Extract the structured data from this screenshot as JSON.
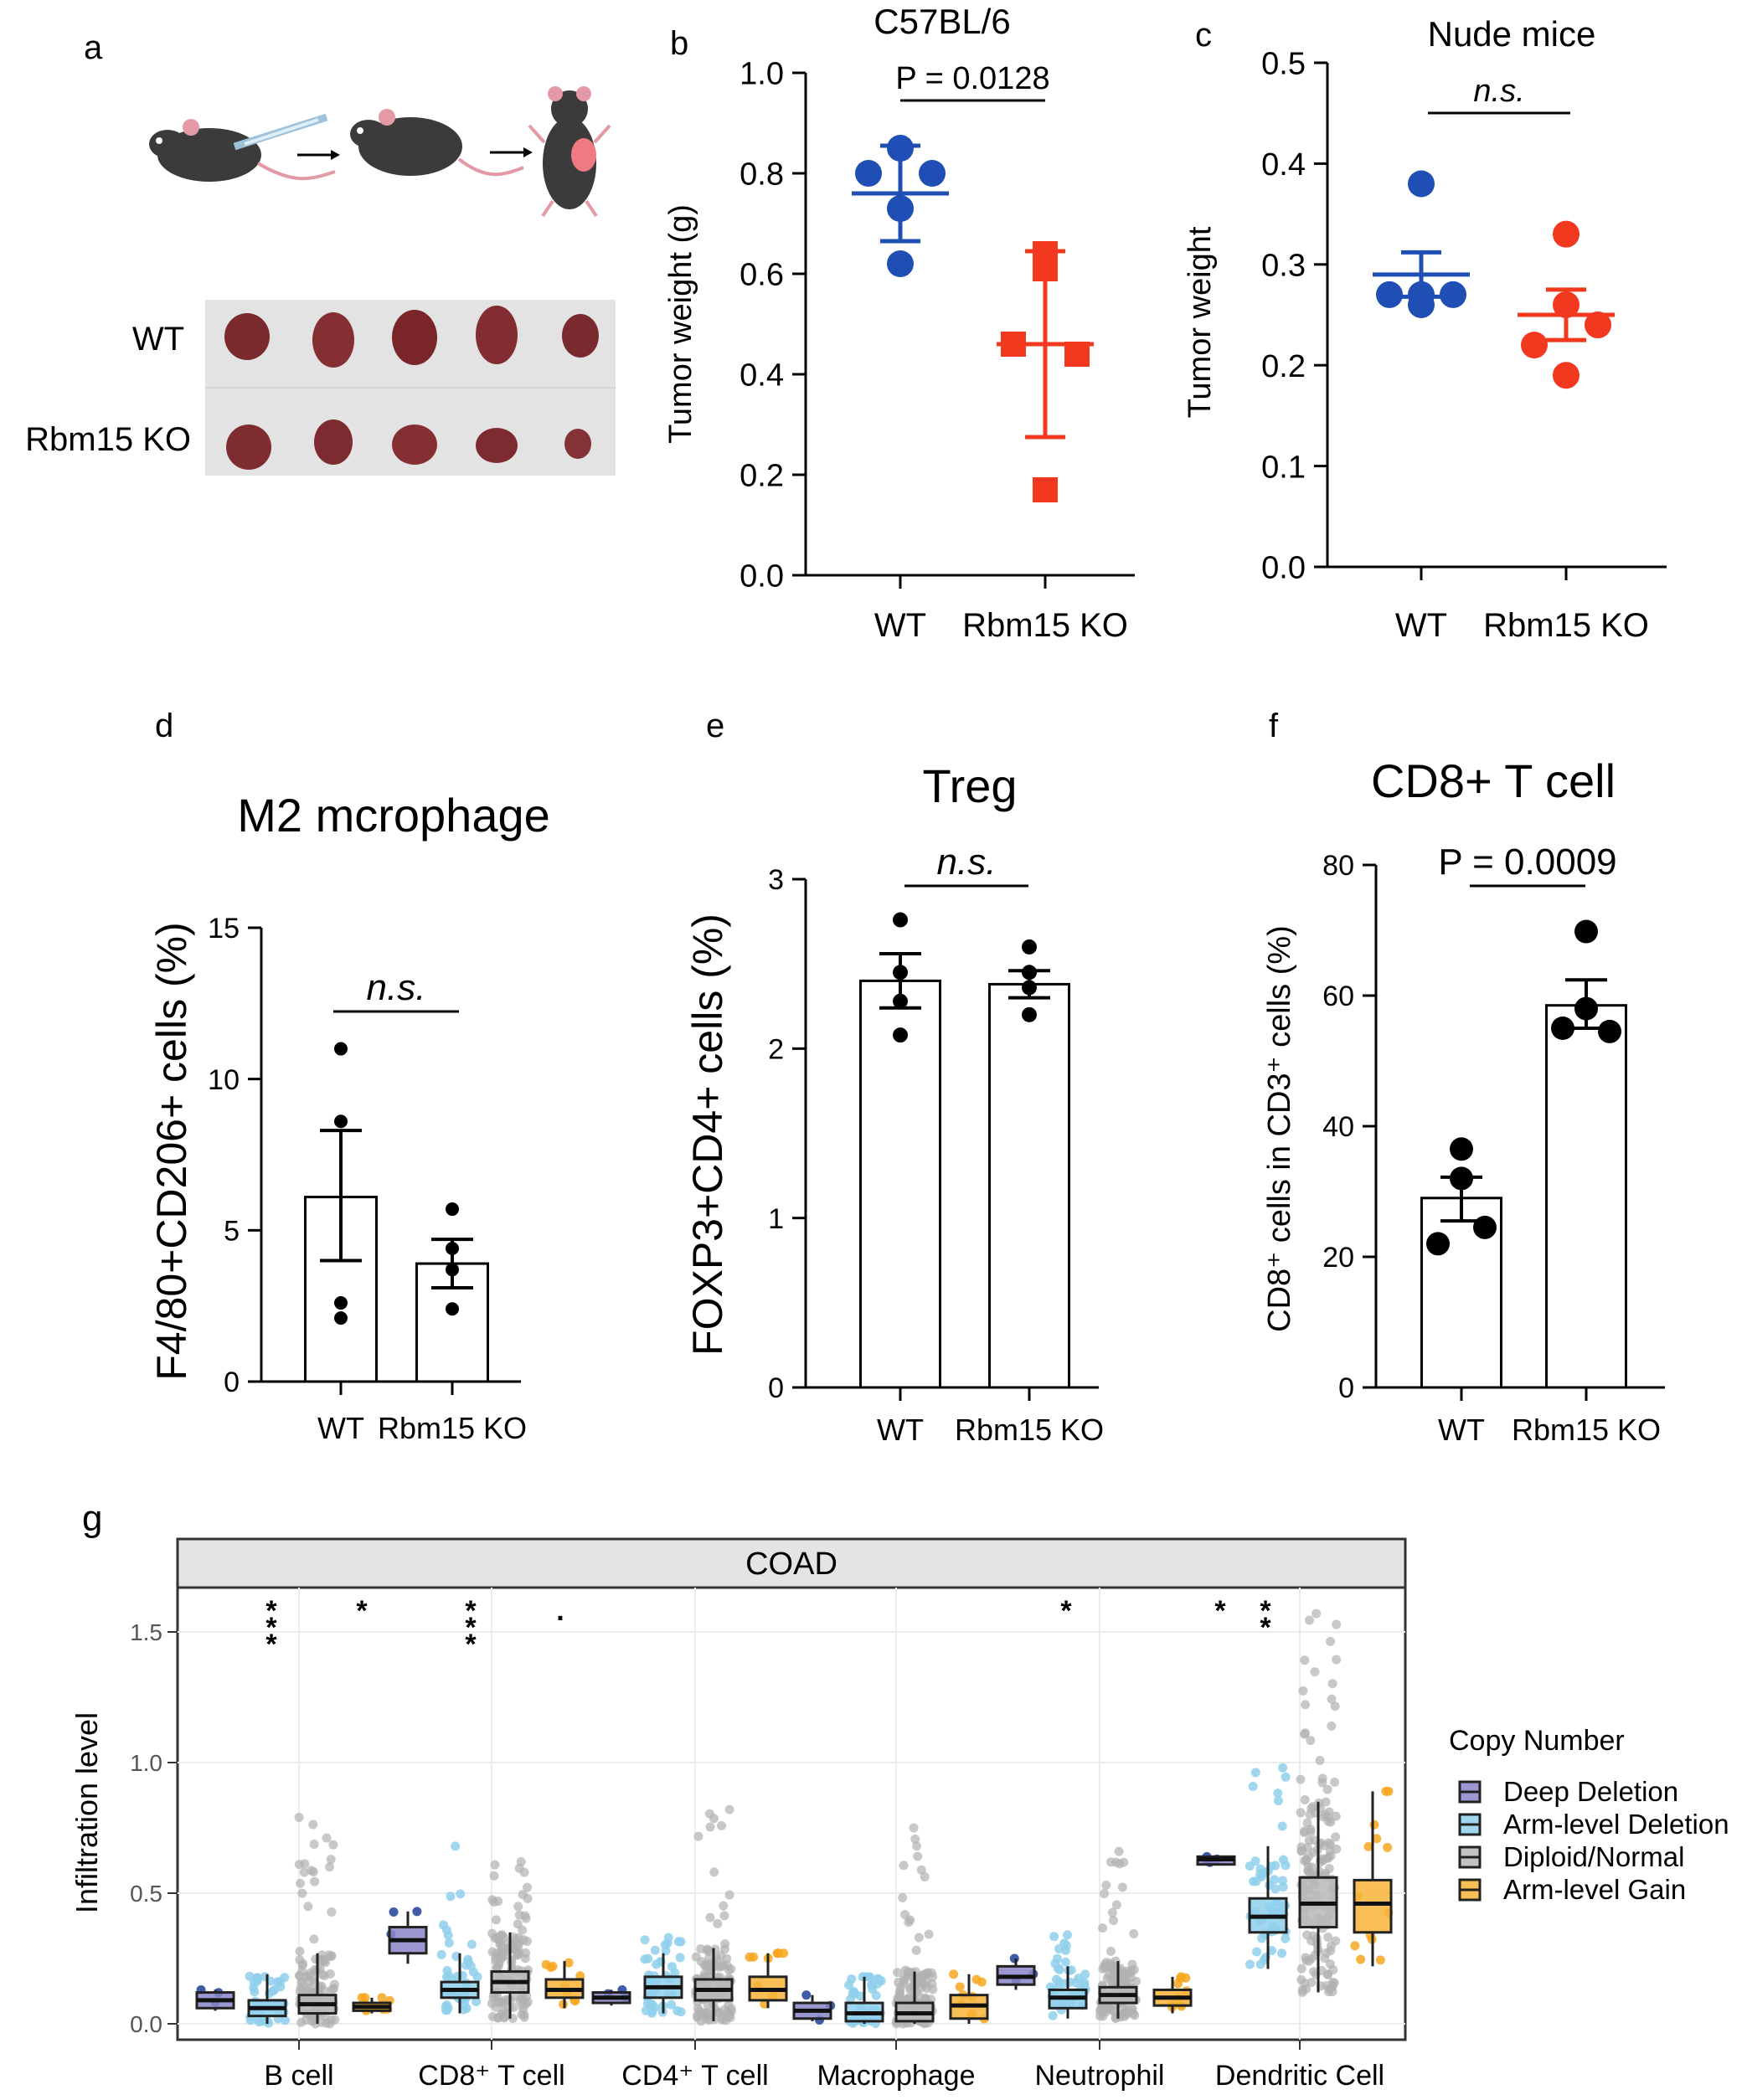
{
  "panel_letters": [
    "a",
    "b",
    "c",
    "d",
    "e",
    "f",
    "g"
  ],
  "panel_a": {
    "row_labels": [
      "WT",
      "Rbm15 KO"
    ]
  },
  "colors": {
    "wt_blue": "#1f4fb4",
    "ko_red": "#f2381e",
    "axis": "#000000",
    "deep_deletion": "#8a86c9",
    "arm_deletion": "#8fd0ec",
    "diploid": "#b8b8b8",
    "arm_gain": "#f7b43a",
    "facet_strip": "#e4e4e4"
  },
  "chart_data": [
    {
      "id": "b",
      "type": "scatter",
      "title": "C57BL/6",
      "ylabel": "Tumor weight (g)",
      "xlabel": "",
      "ylim": [
        0,
        1.0
      ],
      "yticks": [
        "0.0",
        "0.2",
        "0.4",
        "0.6",
        "0.8",
        "1.0"
      ],
      "categories": [
        "WT",
        "Rbm15 KO"
      ],
      "series": [
        {
          "name": "WT",
          "marker": "circle",
          "values": [
            0.85,
            0.8,
            0.8,
            0.73,
            0.62
          ],
          "mean": 0.76,
          "err_low": 0.665,
          "err_high": 0.855
        },
        {
          "name": "Rbm15 KO",
          "marker": "square",
          "values": [
            0.64,
            0.61,
            0.46,
            0.44,
            0.17
          ],
          "mean": 0.46,
          "err_low": 0.275,
          "err_high": 0.645
        }
      ],
      "annotation": "P = 0.0128"
    },
    {
      "id": "c",
      "type": "scatter",
      "title": "Nude mice",
      "ylabel": "Tumor weight",
      "xlabel": "",
      "ylim": [
        0,
        0.5
      ],
      "yticks": [
        "0.0",
        "0.1",
        "0.2",
        "0.3",
        "0.4",
        "0.5"
      ],
      "categories": [
        "WT",
        "Rbm15 KO"
      ],
      "series": [
        {
          "name": "WT",
          "marker": "circle",
          "values": [
            0.38,
            0.27,
            0.27,
            0.27,
            0.26
          ],
          "mean": 0.29,
          "err_low": 0.268,
          "err_high": 0.312
        },
        {
          "name": "Rbm15 KO",
          "marker": "circle",
          "values": [
            0.33,
            0.26,
            0.24,
            0.22,
            0.19
          ],
          "mean": 0.25,
          "err_low": 0.225,
          "err_high": 0.275
        }
      ],
      "annotation": "n.s."
    },
    {
      "id": "d",
      "type": "bar",
      "title": "M2 mcrophage",
      "ylabel": "F4/80+CD206+ cells (%)",
      "xlabel": "",
      "ylim": [
        0,
        15
      ],
      "yticks": [
        "0",
        "5",
        "10",
        "15"
      ],
      "categories": [
        "WT",
        "Rbm15 KO"
      ],
      "values": [
        6.1,
        3.9
      ],
      "err_low": [
        4.0,
        3.1
      ],
      "err_high": [
        8.3,
        4.7
      ],
      "points": [
        [
          11.0,
          8.6,
          2.6,
          2.1
        ],
        [
          5.7,
          4.4,
          3.7,
          2.4
        ]
      ],
      "annotation": "n.s."
    },
    {
      "id": "e",
      "type": "bar",
      "title": "Treg",
      "ylabel": "FOXP3+CD4+ cells (%)",
      "xlabel": "",
      "ylim": [
        0,
        3
      ],
      "yticks": [
        "0",
        "1",
        "2",
        "3"
      ],
      "categories": [
        "WT",
        "Rbm15 KO"
      ],
      "values": [
        2.4,
        2.38
      ],
      "err_low": [
        2.24,
        2.3
      ],
      "err_high": [
        2.56,
        2.46
      ],
      "points": [
        [
          2.76,
          2.45,
          2.28,
          2.08
        ],
        [
          2.6,
          2.45,
          2.36,
          2.2
        ]
      ],
      "annotation": "n.s."
    },
    {
      "id": "f",
      "type": "bar",
      "title": "CD8+ T cell",
      "ylabel": "CD8⁺ cells in CD3⁺ cells (%)",
      "xlabel": "",
      "ylim": [
        0,
        80
      ],
      "yticks": [
        "0",
        "20",
        "40",
        "60",
        "80"
      ],
      "categories": [
        "WT",
        "Rbm15 KO"
      ],
      "values": [
        29,
        58.5
      ],
      "err_low": [
        25.5,
        55.0
      ],
      "err_high": [
        32.2,
        62.4
      ],
      "points": [
        [
          36.5,
          32.0,
          24.5,
          22.0
        ],
        [
          69.8,
          58.0,
          55.0,
          54.5
        ]
      ],
      "annotation": "P = 0.0009"
    },
    {
      "id": "g",
      "type": "box",
      "facet_title": "COAD",
      "ylabel": "Infiltration level",
      "xlabel": "",
      "ylim": [
        0,
        1.6
      ],
      "yticks": [
        "0.0",
        "0.5",
        "1.0",
        "1.5"
      ],
      "categories": [
        "B cell",
        "CD8⁺ T cell",
        "CD4⁺ T cell",
        "Macrophage",
        "Neutrophil",
        "Dendritic Cell"
      ],
      "legend_title": "Copy Number",
      "legend_position": "right",
      "series_names": [
        "Deep Deletion",
        "Arm-level Deletion",
        "Diploid/Normal",
        "Arm-level Gain"
      ],
      "boxes": [
        [
          {
            "q1": 0.06,
            "median": 0.09,
            "q3": 0.12,
            "lo": 0.05,
            "hi": 0.13
          },
          {
            "q1": 0.03,
            "median": 0.06,
            "q3": 0.09,
            "lo": 0.0,
            "hi": 0.19
          },
          {
            "q1": 0.04,
            "median": 0.075,
            "q3": 0.11,
            "lo": 0.0,
            "hi": 0.27
          },
          {
            "q1": 0.05,
            "median": 0.065,
            "q3": 0.08,
            "lo": 0.04,
            "hi": 0.1
          }
        ],
        [
          {
            "q1": 0.27,
            "median": 0.32,
            "q3": 0.37,
            "lo": 0.23,
            "hi": 0.43
          },
          {
            "q1": 0.1,
            "median": 0.13,
            "q3": 0.16,
            "lo": 0.04,
            "hi": 0.27
          },
          {
            "q1": 0.12,
            "median": 0.16,
            "q3": 0.2,
            "lo": 0.02,
            "hi": 0.35
          },
          {
            "q1": 0.1,
            "median": 0.13,
            "q3": 0.17,
            "lo": 0.06,
            "hi": 0.24
          }
        ],
        [
          {
            "q1": 0.08,
            "median": 0.1,
            "q3": 0.12,
            "lo": 0.07,
            "hi": 0.13
          },
          {
            "q1": 0.1,
            "median": 0.14,
            "q3": 0.18,
            "lo": 0.04,
            "hi": 0.27
          },
          {
            "q1": 0.09,
            "median": 0.13,
            "q3": 0.17,
            "lo": 0.01,
            "hi": 0.29
          },
          {
            "q1": 0.09,
            "median": 0.13,
            "q3": 0.18,
            "lo": 0.06,
            "hi": 0.27
          }
        ],
        [
          {
            "q1": 0.02,
            "median": 0.05,
            "q3": 0.08,
            "lo": 0.01,
            "hi": 0.11
          },
          {
            "q1": 0.01,
            "median": 0.04,
            "q3": 0.08,
            "lo": 0.0,
            "hi": 0.18
          },
          {
            "q1": 0.01,
            "median": 0.04,
            "q3": 0.08,
            "lo": 0.0,
            "hi": 0.2
          },
          {
            "q1": 0.02,
            "median": 0.07,
            "q3": 0.11,
            "lo": 0.0,
            "hi": 0.19
          }
        ],
        [
          {
            "q1": 0.15,
            "median": 0.18,
            "q3": 0.22,
            "lo": 0.13,
            "hi": 0.25
          },
          {
            "q1": 0.06,
            "median": 0.1,
            "q3": 0.13,
            "lo": 0.02,
            "hi": 0.22
          },
          {
            "q1": 0.08,
            "median": 0.11,
            "q3": 0.14,
            "lo": 0.02,
            "hi": 0.24
          },
          {
            "q1": 0.07,
            "median": 0.1,
            "q3": 0.13,
            "lo": 0.04,
            "hi": 0.18
          }
        ],
        [
          {
            "q1": 0.61,
            "median": 0.63,
            "q3": 0.64,
            "lo": 0.61,
            "hi": 0.64
          },
          {
            "q1": 0.35,
            "median": 0.41,
            "q3": 0.48,
            "lo": 0.21,
            "hi": 0.68
          },
          {
            "q1": 0.37,
            "median": 0.46,
            "q3": 0.56,
            "lo": 0.12,
            "hi": 0.85
          },
          {
            "q1": 0.35,
            "median": 0.46,
            "q3": 0.55,
            "lo": 0.22,
            "hi": 0.89
          }
        ]
      ],
      "outlier_max": [
        [
          0.13,
          0.16,
          0.79,
          0.1
        ],
        [
          0.43,
          0.68,
          0.62,
          0.22
        ],
        [
          0.13,
          0.33,
          0.82,
          0.27
        ],
        [
          0.11,
          0.18,
          0.75,
          0.19
        ],
        [
          0.25,
          0.34,
          0.66,
          0.18
        ],
        [
          0.64,
          0.98,
          1.57,
          0.89
        ]
      ],
      "significance": [
        [
          "***",
          "*",
          "",
          ""
        ],
        [
          "***",
          "",
          ".",
          ""
        ],
        [
          "",
          "",
          "",
          ""
        ],
        [
          "",
          "",
          "",
          ""
        ],
        [
          "*",
          "",
          "",
          ""
        ],
        [
          "*",
          "**",
          "",
          ""
        ]
      ]
    }
  ]
}
